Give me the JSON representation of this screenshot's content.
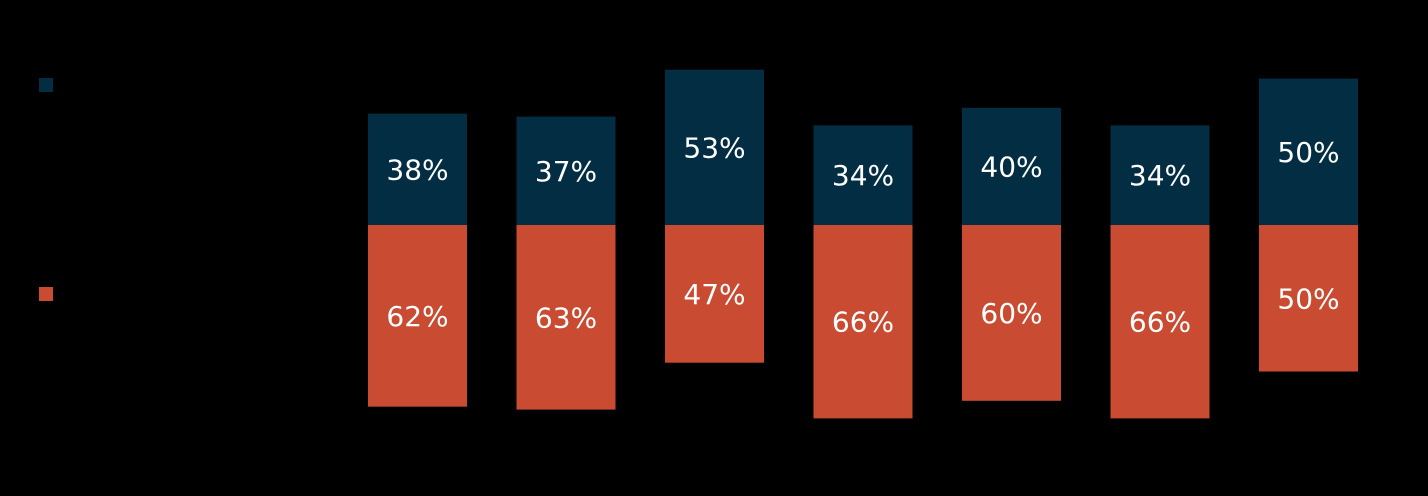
{
  "chart_data": {
    "type": "diverging_bar",
    "categories": [
      null,
      null,
      null,
      null,
      null,
      null,
      null
    ],
    "series": [
      {
        "color": "#022d42",
        "values": [
          38,
          37,
          53,
          34,
          40,
          34,
          50
        ],
        "value_labels": [
          "38%",
          "37%",
          "53%",
          "34%",
          "40%",
          "34%",
          "50%"
        ]
      },
      {
        "color": "#c84b32",
        "values": [
          62,
          63,
          47,
          66,
          60,
          66,
          50
        ],
        "value_labels": [
          "62%",
          "63%",
          "47%",
          "66%",
          "60%",
          "66%",
          "50%"
        ]
      }
    ]
  }
}
